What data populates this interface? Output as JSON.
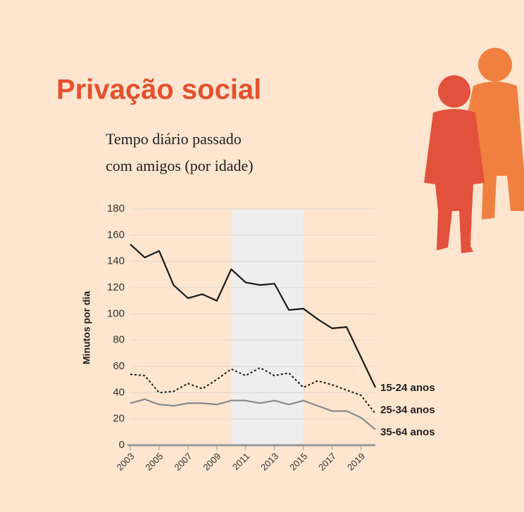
{
  "chart_data": {
    "type": "line",
    "title": "Privação social",
    "subtitle": [
      "Tempo diário passado",
      "com amigos (por idade)"
    ],
    "ylabel": "Minutos por dia",
    "x": [
      2003,
      2004,
      2005,
      2006,
      2007,
      2008,
      2009,
      2010,
      2011,
      2012,
      2013,
      2014,
      2015,
      2016,
      2017,
      2018,
      2019,
      2020
    ],
    "series": [
      {
        "name": "15-24 anos",
        "color": "#1a1a1a",
        "style": "solid",
        "values": [
          153,
          143,
          148,
          122,
          112,
          115,
          110,
          134,
          124,
          122,
          123,
          103,
          104,
          96,
          89,
          90,
          67,
          44
        ]
      },
      {
        "name": "25-34 anos",
        "color": "#1a1a1a",
        "style": "dotted",
        "values": [
          54,
          53,
          40,
          41,
          47,
          43,
          50,
          58,
          53,
          59,
          53,
          55,
          44,
          49,
          46,
          42,
          38,
          24
        ]
      },
      {
        "name": "35-64 anos",
        "color": "#8a8a8a",
        "style": "solid",
        "values": [
          32,
          35,
          31,
          30,
          32,
          32,
          31,
          34,
          34,
          32,
          34,
          31,
          34,
          30,
          26,
          26,
          21,
          12
        ]
      }
    ],
    "highlight": [
      2010,
      2015
    ],
    "xlim": [
      2003,
      2020
    ],
    "xticks": [
      2003,
      2005,
      2007,
      2009,
      2011,
      2013,
      2015,
      2017,
      2019
    ],
    "ylim": [
      0,
      180
    ],
    "yticks": [
      0,
      20,
      40,
      60,
      80,
      100,
      120,
      140,
      160,
      180
    ],
    "grid": true
  }
}
